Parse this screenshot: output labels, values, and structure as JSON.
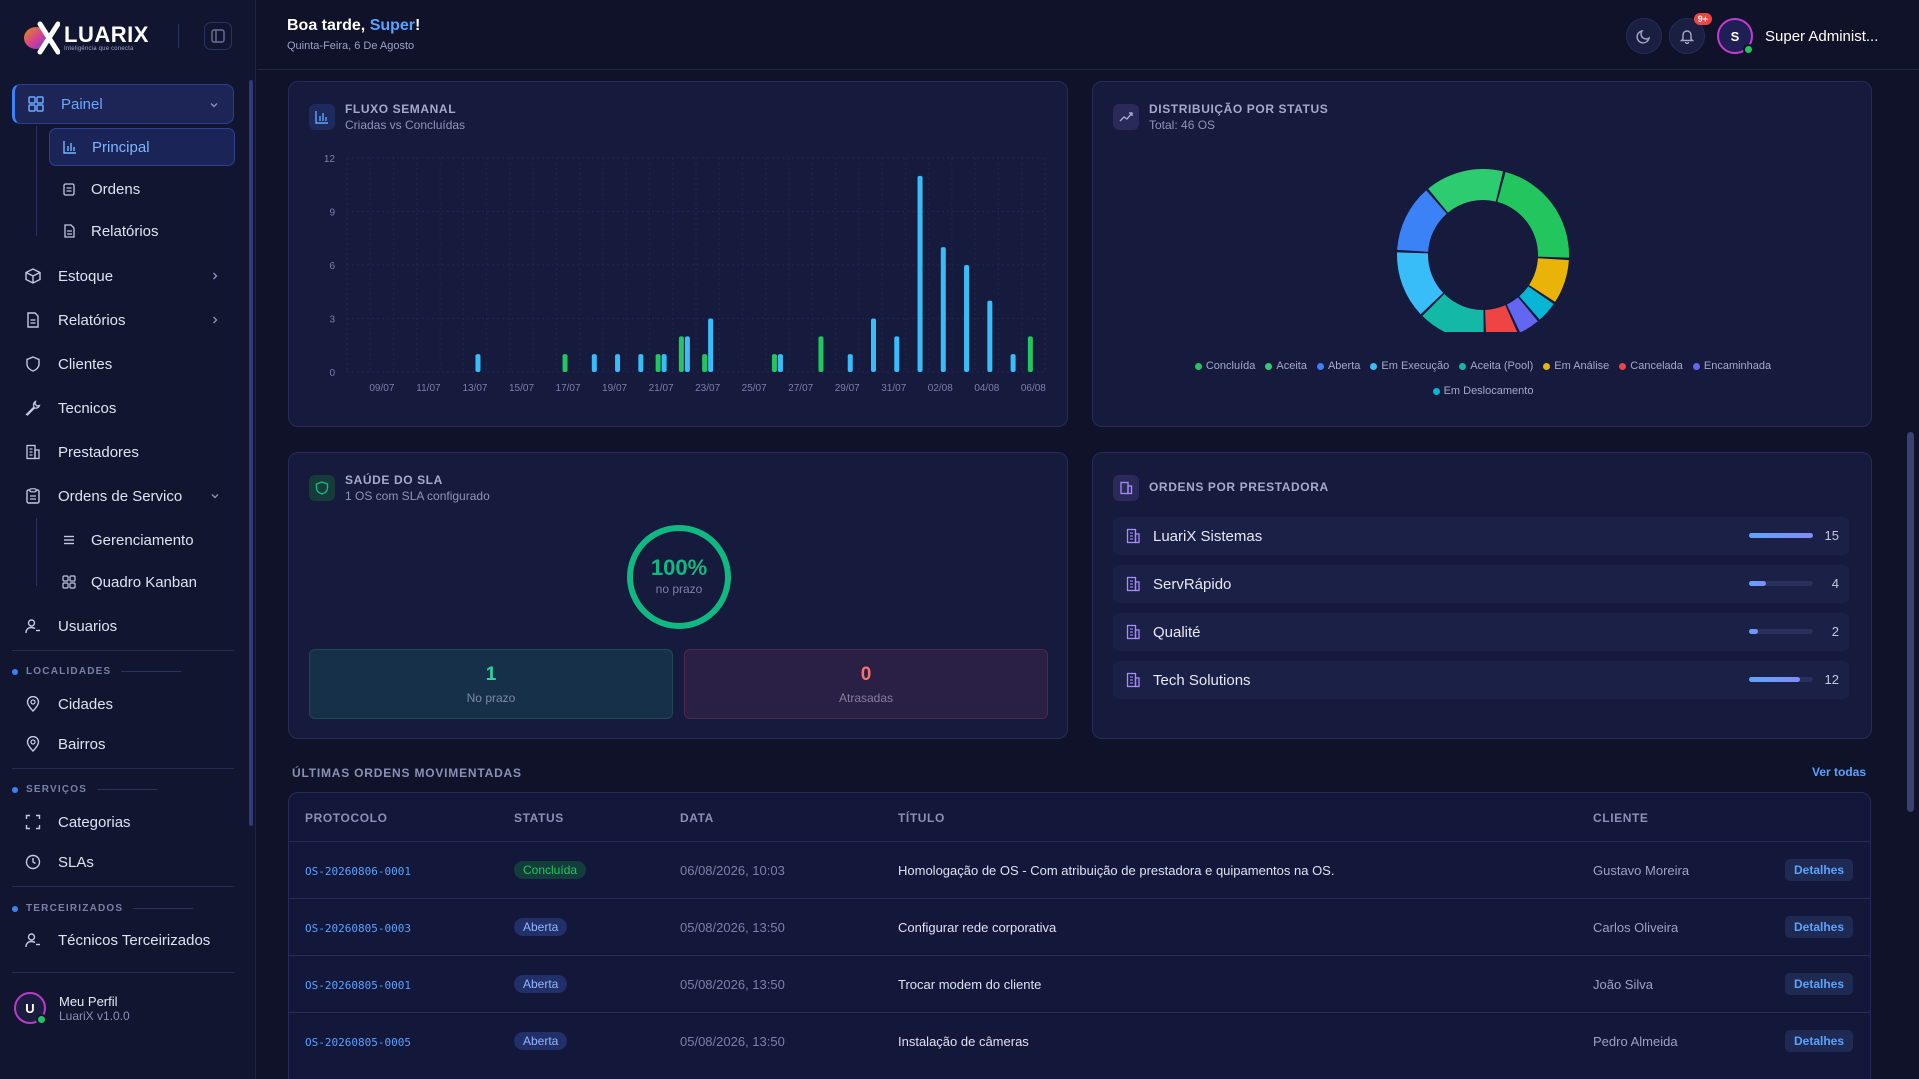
{
  "brand": {
    "name": "LUARIX",
    "tagline": "Inteligência que conecta"
  },
  "topbar": {
    "greeting_prefix": "Boa tarde, ",
    "greeting_name": "Super",
    "greeting_suffix": "!",
    "date": "Quinta-Feira, 6 De Agosto",
    "notif_badge": "9+",
    "user_initial": "S",
    "user_name": "Super Administ..."
  },
  "sidebar": {
    "painel": "Painel",
    "principal": "Principal",
    "ordens": "Ordens",
    "relatorios_sub": "Relatórios",
    "estoque": "Estoque",
    "relatorios": "Relatórios",
    "clientes": "Clientes",
    "tecnicos": "Tecnicos",
    "prestadores": "Prestadores",
    "ordens_servico": "Ordens de Servico",
    "gerenciamento": "Gerenciamento",
    "kanban": "Quadro Kanban",
    "usuarios": "Usuarios",
    "sec_localidades": "LOCALIDADES",
    "cidades": "Cidades",
    "bairros": "Bairros",
    "sec_servicos": "SERVIÇOS",
    "categorias": "Categorias",
    "slas": "SLAs",
    "sec_terceirizados": "TERCEIRIZADOS",
    "tec_terceirizados": "Técnicos Terceirizados",
    "profile_initial": "U",
    "profile_name": "Meu Perfil",
    "profile_version": "LuariX v1.0.0"
  },
  "fluxo": {
    "title": "FLUXO SEMANAL",
    "subtitle": "Criadas vs Concluídas"
  },
  "chart_data": [
    {
      "type": "bar",
      "title": "FLUXO SEMANAL",
      "subtitle": "Criadas vs Concluídas",
      "ylim": [
        0,
        12
      ],
      "yticks": [
        0,
        3,
        6,
        9,
        12
      ],
      "x_tick_labels": [
        "09/07",
        "11/07",
        "13/07",
        "15/07",
        "17/07",
        "19/07",
        "21/07",
        "23/07",
        "25/07",
        "27/07",
        "29/07",
        "31/07",
        "02/08",
        "04/08",
        "06/08"
      ],
      "categories": [
        "08/07",
        "09/07",
        "10/07",
        "11/07",
        "12/07",
        "13/07",
        "14/07",
        "15/07",
        "16/07",
        "17/07",
        "18/07",
        "19/07",
        "20/07",
        "21/07",
        "22/07",
        "23/07",
        "24/07",
        "25/07",
        "26/07",
        "27/07",
        "28/07",
        "29/07",
        "30/07",
        "31/07",
        "01/08",
        "02/08",
        "03/08",
        "04/08",
        "05/08",
        "06/08"
      ],
      "series": [
        {
          "color": "#38bdf8",
          "values": [
            0,
            0,
            0,
            0,
            0,
            1,
            0,
            0,
            0,
            0,
            1,
            1,
            1,
            1,
            2,
            3,
            0,
            0,
            1,
            0,
            0,
            1,
            3,
            2,
            11,
            7,
            6,
            4,
            1,
            0
          ]
        },
        {
          "color": "#22c55e",
          "values": [
            0,
            0,
            0,
            0,
            0,
            0,
            0,
            0,
            0,
            1,
            0,
            0,
            0,
            1,
            2,
            1,
            0,
            0,
            1,
            0,
            2,
            0,
            0,
            0,
            0,
            0,
            0,
            0,
            0,
            2
          ]
        }
      ]
    },
    {
      "type": "pie",
      "title": "DISTRIBUIÇÃO POR STATUS",
      "subtitle": "Total: 46 OS",
      "labels": [
        "Concluída",
        "Aceita",
        "Aberta",
        "Em Execução",
        "Aceita (Pool)",
        "Em Análise",
        "Cancelada",
        "Encaminhada",
        "Em Deslocamento"
      ],
      "colors": [
        "#22c55e",
        "#2ecc71",
        "#3b82f6",
        "#38bdf8",
        "#14b8a6",
        "#eab308",
        "#ef4444",
        "#6366f1",
        "#06b6d4"
      ],
      "values": [
        10,
        7,
        6,
        6,
        6,
        4,
        3,
        2,
        2
      ]
    }
  ],
  "distribuicao": {
    "title": "DISTRIBUIÇÃO POR STATUS",
    "subtitle": "Total: 46 OS"
  },
  "sla": {
    "title": "SAÚDE DO SLA",
    "subtitle": "1 OS com SLA configurado",
    "percent": "100%",
    "percent_label": "no prazo",
    "on_time_value": "1",
    "on_time_label": "No prazo",
    "late_value": "0",
    "late_label": "Atrasadas"
  },
  "prestadoras": {
    "title": "ORDENS POR PRESTADORA",
    "max": 15,
    "items": [
      {
        "name": "LuariX Sistemas",
        "count": 15
      },
      {
        "name": "ServRápido",
        "count": 4
      },
      {
        "name": "Qualité",
        "count": 2
      },
      {
        "name": "Tech Solutions",
        "count": 12
      }
    ]
  },
  "ultimas": {
    "title": "ÚLTIMAS ORDENS MOVIMENTADAS",
    "see_all": "Ver todas",
    "headers": {
      "protocolo": "PROTOCOLO",
      "status": "STATUS",
      "data": "DATA",
      "titulo": "TÍTULO",
      "cliente": "CLIENTE"
    },
    "details_label": "Detalhes",
    "rows": [
      {
        "protocolo": "OS-20260806-0001",
        "status": "Concluída",
        "data": "06/08/2026, 10:03",
        "titulo": "Homologação de OS - Com atribuição de prestadora e quipamentos na OS.",
        "cliente": "Gustavo Moreira"
      },
      {
        "protocolo": "OS-20260805-0003",
        "status": "Aberta",
        "data": "05/08/2026, 13:50",
        "titulo": "Configurar rede corporativa",
        "cliente": "Carlos Oliveira"
      },
      {
        "protocolo": "OS-20260805-0001",
        "status": "Aberta",
        "data": "05/08/2026, 13:50",
        "titulo": "Trocar modem do cliente",
        "cliente": "João Silva"
      },
      {
        "protocolo": "OS-20260805-0005",
        "status": "Aberta",
        "data": "05/08/2026, 13:50",
        "titulo": "Instalação de câmeras",
        "cliente": "Pedro Almeida"
      }
    ],
    "status_colors": {
      "Concluída": "#22c55e",
      "Aberta": "#93b4ff"
    }
  }
}
